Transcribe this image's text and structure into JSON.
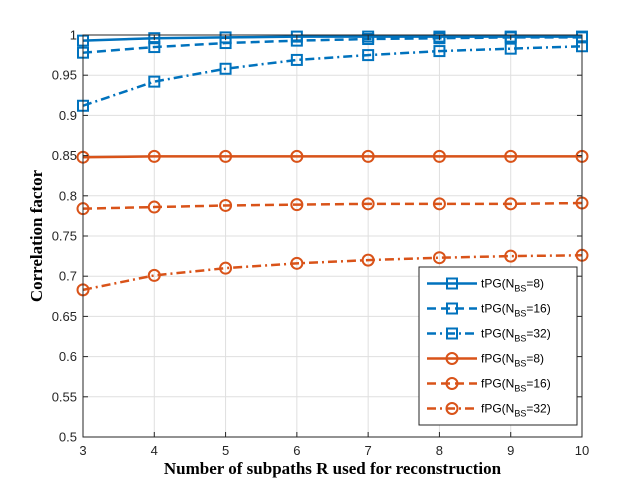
{
  "chart_data": {
    "type": "line",
    "xlabel": "Number of subpaths R used for reconstruction",
    "ylabel": "Correlation factor",
    "x": [
      3,
      4,
      5,
      6,
      7,
      8,
      9,
      10
    ],
    "xlim": [
      3,
      10
    ],
    "ylim": [
      0.5,
      1.0
    ],
    "xticks": [
      "3",
      "4",
      "5",
      "6",
      "7",
      "8",
      "9",
      "10"
    ],
    "yticks": [
      "0.5",
      "0.55",
      "0.6",
      "0.65",
      "0.7",
      "0.75",
      "0.8",
      "0.85",
      "0.9",
      "0.95",
      "1"
    ],
    "grid": true,
    "legend_position": "bottom-right",
    "series": [
      {
        "label": "tPG(N",
        "sub": "BS",
        "suffix": "=8)",
        "color": "#0072BD",
        "line": "solid",
        "marker": "square",
        "values": [
          0.993,
          0.996,
          0.997,
          0.998,
          0.998,
          0.998,
          0.998,
          0.998
        ]
      },
      {
        "label": "tPG(N",
        "sub": "BS",
        "suffix": "=16)",
        "color": "#0072BD",
        "line": "dashed",
        "marker": "square",
        "values": [
          0.978,
          0.985,
          0.99,
          0.993,
          0.995,
          0.996,
          0.997,
          0.997
        ]
      },
      {
        "label": "tPG(N",
        "sub": "BS",
        "suffix": "=32)",
        "color": "#0072BD",
        "line": "dashdot",
        "marker": "square",
        "values": [
          0.912,
          0.942,
          0.958,
          0.969,
          0.975,
          0.98,
          0.983,
          0.986
        ]
      },
      {
        "label": "fPG(N",
        "sub": "BS",
        "suffix": "=8)",
        "color": "#D95319",
        "line": "solid",
        "marker": "circle",
        "values": [
          0.848,
          0.849,
          0.849,
          0.849,
          0.849,
          0.849,
          0.849,
          0.849
        ]
      },
      {
        "label": "fPG(N",
        "sub": "BS",
        "suffix": "=16)",
        "color": "#D95319",
        "line": "dashed",
        "marker": "circle",
        "values": [
          0.784,
          0.786,
          0.788,
          0.789,
          0.79,
          0.79,
          0.79,
          0.791
        ]
      },
      {
        "label": "fPG(N",
        "sub": "BS",
        "suffix": "=32)",
        "color": "#D95319",
        "line": "dashdot",
        "marker": "circle",
        "values": [
          0.683,
          0.701,
          0.71,
          0.716,
          0.72,
          0.723,
          0.725,
          0.726
        ]
      }
    ]
  }
}
